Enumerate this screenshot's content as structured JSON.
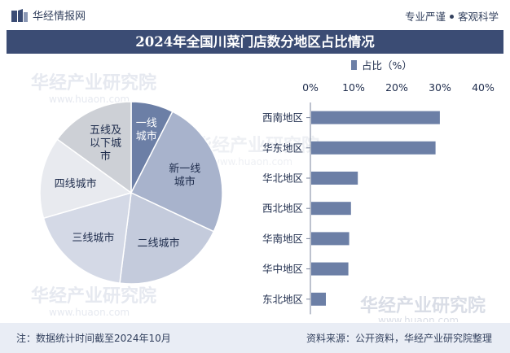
{
  "header": {
    "brand": "华经情报网",
    "slogan_left": "专业严谨",
    "slogan_right": "客观科学"
  },
  "watermark": {
    "name": "华经产业研究院",
    "url": "www.huaon.com"
  },
  "chart_data": [
    {
      "type": "pie",
      "title": "2024年全国川菜门店数分地区占比情况",
      "categories": [
        "一线城市",
        "新一线城市",
        "二线城市",
        "三线城市",
        "四线城市",
        "五线及以下城市"
      ],
      "values": [
        7.5,
        24.5,
        20,
        18.5,
        14.5,
        15
      ],
      "colors": [
        "#6c7fa6",
        "#a8b3cc",
        "#c4cbdc",
        "#d4d9e6",
        "#e8eaef",
        "#cdd0d6"
      ],
      "start_angle": "top",
      "direction": "clockwise"
    },
    {
      "type": "bar",
      "orientation": "horizontal",
      "legend": "占比（%）",
      "legend_position": "top",
      "categories": [
        "西南地区",
        "华东地区",
        "华北地区",
        "西北地区",
        "华南地区",
        "华中地区",
        "东北地区"
      ],
      "values": [
        29.8,
        28.8,
        10.8,
        9.2,
        8.8,
        8.6,
        3.4
      ],
      "xticks": [
        "0%",
        "10%",
        "20%",
        "30%",
        "40%"
      ],
      "xlim": [
        0,
        40
      ],
      "x_axis_position": "top",
      "color": "#6c7fa6",
      "grid": false
    }
  ],
  "footer": {
    "note": "注：数据统计时间截至2024年10月",
    "source": "资料来源：公开资料，华经产业研究院整理"
  }
}
